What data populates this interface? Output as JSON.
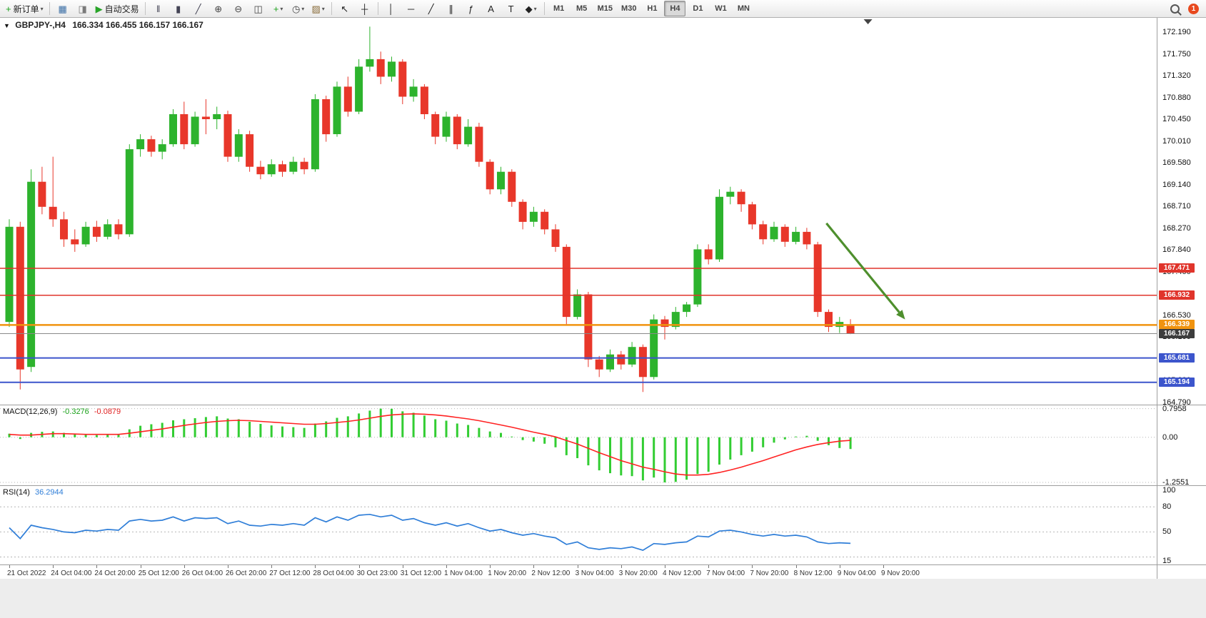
{
  "toolbar": {
    "items": [
      {
        "name": "new-order-button",
        "icon": "new-order-icon",
        "glyph": "+",
        "color": "#1fa31f",
        "label": "新订单",
        "dropdown": true
      },
      {
        "sep": true
      },
      {
        "name": "market-watch-button",
        "icon": "market-watch-icon",
        "glyph": "▦",
        "color": "#3a6ea5"
      },
      {
        "name": "data-window-button",
        "icon": "data-window-icon",
        "glyph": "◨",
        "color": "#7a7a7a"
      },
      {
        "name": "autotrading-button",
        "icon": "autotrading-icon",
        "glyph": "▶",
        "color": "#28a428",
        "label": "自动交易"
      },
      {
        "sep": true
      },
      {
        "name": "bar-chart-button",
        "icon": "bar-chart-icon",
        "glyph": "‖",
        "color": "#445"
      },
      {
        "name": "candlestick-chart-button",
        "icon": "candlestick-chart-icon",
        "glyph": "▮",
        "color": "#445"
      },
      {
        "name": "line-chart-button",
        "icon": "line-chart-icon",
        "glyph": "╱",
        "color": "#445"
      },
      {
        "name": "zoom-in-button",
        "icon": "zoom-in-icon",
        "glyph": "⊕",
        "color": "#444"
      },
      {
        "name": "zoom-out-button",
        "icon": "zoom-out-icon",
        "glyph": "⊖",
        "color": "#444"
      },
      {
        "name": "tile-windows-button",
        "icon": "tile-windows-icon",
        "glyph": "◫",
        "color": "#444"
      },
      {
        "name": "indicators-button",
        "icon": "indicators-icon",
        "glyph": "+",
        "color": "#1fa31f",
        "dropdown": true
      },
      {
        "name": "periods-button",
        "icon": "clock-icon",
        "glyph": "◷",
        "color": "#444",
        "dropdown": true
      },
      {
        "name": "templates-button",
        "icon": "template-icon",
        "glyph": "▨",
        "color": "#8a6d3b",
        "dropdown": true
      },
      {
        "sep": true
      },
      {
        "name": "cursor-button",
        "icon": "cursor-icon",
        "glyph": "↖",
        "color": "#222"
      },
      {
        "name": "crosshair-button",
        "icon": "crosshair-icon",
        "glyph": "┼",
        "color": "#222"
      },
      {
        "sep": true
      },
      {
        "name": "vertical-line-button",
        "icon": "vertical-line-icon",
        "glyph": "│",
        "color": "#222"
      },
      {
        "name": "horizontal-line-button",
        "icon": "horizontal-line-icon",
        "glyph": "─",
        "color": "#222"
      },
      {
        "name": "trendline-button",
        "icon": "trendline-icon",
        "glyph": "╱",
        "color": "#222"
      },
      {
        "name": "channel-button",
        "icon": "channel-icon",
        "glyph": "∥",
        "color": "#222"
      },
      {
        "name": "fibonacci-button",
        "icon": "fibonacci-icon",
        "glyph": "ƒ",
        "color": "#222"
      },
      {
        "name": "text-button",
        "icon": "text-icon",
        "glyph": "A",
        "color": "#222"
      },
      {
        "name": "label-button",
        "icon": "label-icon",
        "glyph": "T",
        "color": "#222"
      },
      {
        "name": "shapes-button",
        "icon": "shapes-icon",
        "glyph": "◆",
        "color": "#222",
        "dropdown": true
      },
      {
        "sep": true
      },
      {
        "name": "timeframe-m1-button",
        "tf": true,
        "label": "M1"
      },
      {
        "name": "timeframe-m5-button",
        "tf": true,
        "label": "M5"
      },
      {
        "name": "timeframe-m15-button",
        "tf": true,
        "label": "M15"
      },
      {
        "name": "timeframe-m30-button",
        "tf": true,
        "label": "M30"
      },
      {
        "name": "timeframe-h1-button",
        "tf": true,
        "label": "H1"
      },
      {
        "name": "timeframe-h4-button",
        "tf": true,
        "label": "H4",
        "active": true
      },
      {
        "name": "timeframe-d1-button",
        "tf": true,
        "label": "D1"
      },
      {
        "name": "timeframe-w1-button",
        "tf": true,
        "label": "W1"
      },
      {
        "name": "timeframe-mn-button",
        "tf": true,
        "label": "MN"
      }
    ],
    "notification_badge": "1"
  },
  "chart_data": {
    "type": "candlestick",
    "symbol": "GBPJPY-",
    "timeframe": "H4",
    "symbol_period": "GBPJPY-,H4",
    "ohlc_string": "166.334 166.455 166.157 166.167",
    "current_bar": {
      "open": 166.334,
      "high": 166.455,
      "low": 166.157,
      "close": 166.167
    },
    "grid": false,
    "legend_position": "none",
    "ylim": [
      164.748,
      172.475
    ],
    "colors": {
      "up": "#2db32d",
      "down": "#e8372a",
      "background": "#ffffff",
      "macd_histogram": "#32cd32",
      "macd_signal": "#ff2222",
      "rsi_line": "#2f7ed8"
    },
    "price_ticks": [
      "172.190",
      "171.750",
      "171.320",
      "170.880",
      "170.450",
      "170.010",
      "169.580",
      "169.140",
      "168.710",
      "168.270",
      "167.840",
      "167.400",
      "166.960",
      "166.530",
      "166.100",
      "165.670",
      "165.230",
      "164.790"
    ],
    "hlines": [
      {
        "name": "resistance-line-1",
        "price": 167.471,
        "label": "167.471",
        "color": "#e0342b",
        "width": 1.5
      },
      {
        "name": "resistance-line-2",
        "price": 166.932,
        "label": "166.932",
        "color": "#e0342b",
        "width": 1.5
      },
      {
        "name": "support-line-orange",
        "price": 166.339,
        "label": "166.339",
        "color": "#f0930f",
        "width": 2.5
      },
      {
        "name": "bid-price-line",
        "price": 166.167,
        "label": "166.167",
        "color": "#8a8a8a",
        "width": 1,
        "badge_color": "#3d3d3d"
      },
      {
        "name": "support-line-1",
        "price": 165.681,
        "label": "165.681",
        "color": "#3c55cc",
        "width": 2
      },
      {
        "name": "support-line-2",
        "price": 165.194,
        "label": "165.194",
        "color": "#3c55cc",
        "width": 2
      }
    ],
    "arrow_annotation": {
      "bar_start": 74.8,
      "price_start": 168.37,
      "bar_end": 82.0,
      "price_end": 166.45,
      "color": "#4e8f2d"
    },
    "x_labels": [
      "21 Oct 2022",
      "24 Oct 04:00",
      "24 Oct 20:00",
      "25 Oct 12:00",
      "26 Oct 04:00",
      "26 Oct 20:00",
      "27 Oct 12:00",
      "28 Oct 04:00",
      "30 Oct 23:00",
      "31 Oct 12:00",
      "1 Nov 04:00",
      "1 Nov 20:00",
      "2 Nov 12:00",
      "3 Nov 04:00",
      "3 Nov 20:00",
      "4 Nov 12:00",
      "7 Nov 04:00",
      "7 Nov 20:00",
      "8 Nov 12:00",
      "9 Nov 04:00",
      "9 Nov 20:00"
    ],
    "candles": [
      [
        166.4,
        168.45,
        166.3,
        168.3
      ],
      [
        168.3,
        168.4,
        165.05,
        165.45
      ],
      [
        165.5,
        169.45,
        165.4,
        169.2
      ],
      [
        169.2,
        169.5,
        168.55,
        168.7
      ],
      [
        168.7,
        169.7,
        168.3,
        168.45
      ],
      [
        168.45,
        168.6,
        167.9,
        168.05
      ],
      [
        168.05,
        168.25,
        167.8,
        167.95
      ],
      [
        167.95,
        168.4,
        167.9,
        168.3
      ],
      [
        168.3,
        168.42,
        168.0,
        168.1
      ],
      [
        168.1,
        168.45,
        168.05,
        168.35
      ],
      [
        168.35,
        168.45,
        168.05,
        168.15
      ],
      [
        168.15,
        169.95,
        168.1,
        169.85
      ],
      [
        169.85,
        170.15,
        169.7,
        170.05
      ],
      [
        170.05,
        170.12,
        169.7,
        169.8
      ],
      [
        169.8,
        170.05,
        169.65,
        169.95
      ],
      [
        169.95,
        170.65,
        169.9,
        170.55
      ],
      [
        170.55,
        170.8,
        169.85,
        169.95
      ],
      [
        169.95,
        170.6,
        169.9,
        170.5
      ],
      [
        170.5,
        170.85,
        170.15,
        170.45
      ],
      [
        170.45,
        170.7,
        170.25,
        170.55
      ],
      [
        170.55,
        170.62,
        169.6,
        169.7
      ],
      [
        169.7,
        170.25,
        169.6,
        170.15
      ],
      [
        170.15,
        170.22,
        169.4,
        169.5
      ],
      [
        169.5,
        169.62,
        169.25,
        169.35
      ],
      [
        169.35,
        169.65,
        169.3,
        169.55
      ],
      [
        169.55,
        169.62,
        169.3,
        169.4
      ],
      [
        169.4,
        169.7,
        169.35,
        169.6
      ],
      [
        169.6,
        169.68,
        169.35,
        169.45
      ],
      [
        169.45,
        170.95,
        169.4,
        170.85
      ],
      [
        170.85,
        170.92,
        170.0,
        170.15
      ],
      [
        170.15,
        171.2,
        170.1,
        171.1
      ],
      [
        171.1,
        171.3,
        170.5,
        170.6
      ],
      [
        170.6,
        171.65,
        170.55,
        171.5
      ],
      [
        171.5,
        172.3,
        171.4,
        171.65
      ],
      [
        171.65,
        171.8,
        171.15,
        171.3
      ],
      [
        171.3,
        171.7,
        171.2,
        171.6
      ],
      [
        171.6,
        171.65,
        170.75,
        170.9
      ],
      [
        170.9,
        171.25,
        170.8,
        171.1
      ],
      [
        171.1,
        171.15,
        170.45,
        170.55
      ],
      [
        170.55,
        170.6,
        169.95,
        170.1
      ],
      [
        170.1,
        170.6,
        170.0,
        170.5
      ],
      [
        170.5,
        170.55,
        169.85,
        169.95
      ],
      [
        169.95,
        170.45,
        169.9,
        170.3
      ],
      [
        170.3,
        170.38,
        169.5,
        169.6
      ],
      [
        169.6,
        169.65,
        168.95,
        169.05
      ],
      [
        169.05,
        169.5,
        168.95,
        169.4
      ],
      [
        169.4,
        169.45,
        168.7,
        168.8
      ],
      [
        168.8,
        168.85,
        168.25,
        168.4
      ],
      [
        168.4,
        168.7,
        168.3,
        168.6
      ],
      [
        168.6,
        168.65,
        168.15,
        168.25
      ],
      [
        168.25,
        168.35,
        167.8,
        167.9
      ],
      [
        167.9,
        167.95,
        166.35,
        166.5
      ],
      [
        166.5,
        167.05,
        166.45,
        166.95
      ],
      [
        166.95,
        167.0,
        165.5,
        165.65
      ],
      [
        165.65,
        165.72,
        165.3,
        165.45
      ],
      [
        165.45,
        165.85,
        165.4,
        165.75
      ],
      [
        165.75,
        165.82,
        165.45,
        165.55
      ],
      [
        165.55,
        166.0,
        165.5,
        165.9
      ],
      [
        165.9,
        165.95,
        165.0,
        165.3
      ],
      [
        165.3,
        166.55,
        165.25,
        166.45
      ],
      [
        166.45,
        166.52,
        166.05,
        166.3
      ],
      [
        166.3,
        166.7,
        166.25,
        166.6
      ],
      [
        166.6,
        166.8,
        166.5,
        166.75
      ],
      [
        166.75,
        167.95,
        166.7,
        167.85
      ],
      [
        167.85,
        167.95,
        167.55,
        167.65
      ],
      [
        167.65,
        169.05,
        167.6,
        168.9
      ],
      [
        168.9,
        169.1,
        168.75,
        169.0
      ],
      [
        169.0,
        169.05,
        168.6,
        168.75
      ],
      [
        168.75,
        168.8,
        168.25,
        168.35
      ],
      [
        168.35,
        168.42,
        167.95,
        168.05
      ],
      [
        168.05,
        168.4,
        168.0,
        168.3
      ],
      [
        168.3,
        168.35,
        167.9,
        168.0
      ],
      [
        168.0,
        168.3,
        167.95,
        168.2
      ],
      [
        168.2,
        168.28,
        167.85,
        167.95
      ],
      [
        167.95,
        168.0,
        166.5,
        166.6
      ],
      [
        166.6,
        166.65,
        166.2,
        166.3
      ],
      [
        166.3,
        166.5,
        166.18,
        166.4
      ],
      [
        166.334,
        166.455,
        166.157,
        166.167
      ]
    ],
    "macd": {
      "name": "MACD(12,26,9)",
      "value_main": "-0.3276",
      "value_signal": "-0.0879",
      "scale_labels": [
        "0.7958",
        "0.00",
        "-1.2551"
      ],
      "levels": [
        0.7958,
        0,
        -1.2551
      ],
      "ylim": [
        -1.334,
        0.886
      ],
      "histogram": [
        0.1,
        -0.05,
        0.12,
        0.15,
        0.16,
        0.12,
        0.08,
        0.07,
        0.06,
        0.07,
        0.07,
        0.22,
        0.32,
        0.36,
        0.4,
        0.47,
        0.5,
        0.53,
        0.56,
        0.58,
        0.52,
        0.5,
        0.43,
        0.37,
        0.33,
        0.3,
        0.28,
        0.26,
        0.38,
        0.44,
        0.54,
        0.58,
        0.66,
        0.74,
        0.7958,
        0.79,
        0.72,
        0.68,
        0.6,
        0.5,
        0.46,
        0.38,
        0.34,
        0.26,
        0.16,
        0.12,
        0.02,
        -0.08,
        -0.12,
        -0.18,
        -0.28,
        -0.5,
        -0.58,
        -0.78,
        -0.92,
        -1.0,
        -1.06,
        -1.08,
        -1.2,
        -1.12,
        -1.2551,
        -1.24,
        -1.18,
        -1.02,
        -0.96,
        -0.76,
        -0.62,
        -0.5,
        -0.4,
        -0.28,
        -0.15,
        -0.06,
        0.02,
        0.04,
        -0.1,
        -0.22,
        -0.3,
        -0.3276
      ],
      "signal": [
        0.08,
        0.06,
        0.06,
        0.08,
        0.1,
        0.1,
        0.09,
        0.08,
        0.08,
        0.08,
        0.08,
        0.11,
        0.15,
        0.19,
        0.23,
        0.28,
        0.33,
        0.37,
        0.41,
        0.44,
        0.46,
        0.47,
        0.46,
        0.44,
        0.42,
        0.4,
        0.38,
        0.36,
        0.36,
        0.38,
        0.41,
        0.44,
        0.48,
        0.53,
        0.58,
        0.62,
        0.64,
        0.65,
        0.64,
        0.62,
        0.59,
        0.55,
        0.51,
        0.46,
        0.4,
        0.34,
        0.28,
        0.21,
        0.14,
        0.08,
        0.01,
        -0.09,
        -0.19,
        -0.31,
        -0.43,
        -0.54,
        -0.65,
        -0.74,
        -0.83,
        -0.89,
        -0.96,
        -1.02,
        -1.05,
        -1.05,
        -1.03,
        -0.98,
        -0.91,
        -0.83,
        -0.74,
        -0.65,
        -0.55,
        -0.45,
        -0.35,
        -0.27,
        -0.2,
        -0.15,
        -0.11,
        -0.0879
      ]
    },
    "rsi": {
      "name": "RSI(14)",
      "value": "36.2944",
      "scale_labels": [
        "100",
        "80",
        "50",
        "15"
      ],
      "label_levels": [
        100,
        80,
        50,
        15
      ],
      "levels": [
        80,
        50,
        20
      ],
      "ylim": [
        11,
        105
      ],
      "values": [
        55,
        42,
        58,
        55,
        53,
        50,
        49,
        52,
        51,
        53,
        52,
        63,
        65,
        63,
        64,
        68,
        63,
        67,
        66,
        67,
        60,
        63,
        58,
        57,
        59,
        58,
        60,
        58,
        67,
        62,
        68,
        64,
        70,
        71,
        68,
        70,
        64,
        66,
        61,
        58,
        61,
        57,
        60,
        55,
        51,
        53,
        49,
        46,
        48,
        45,
        43,
        35,
        38,
        31,
        29,
        31,
        30,
        32,
        28,
        36,
        35,
        37,
        38,
        45,
        44,
        51,
        52,
        50,
        47,
        45,
        47,
        45,
        46,
        44,
        38,
        36,
        37,
        36.2944
      ]
    }
  }
}
